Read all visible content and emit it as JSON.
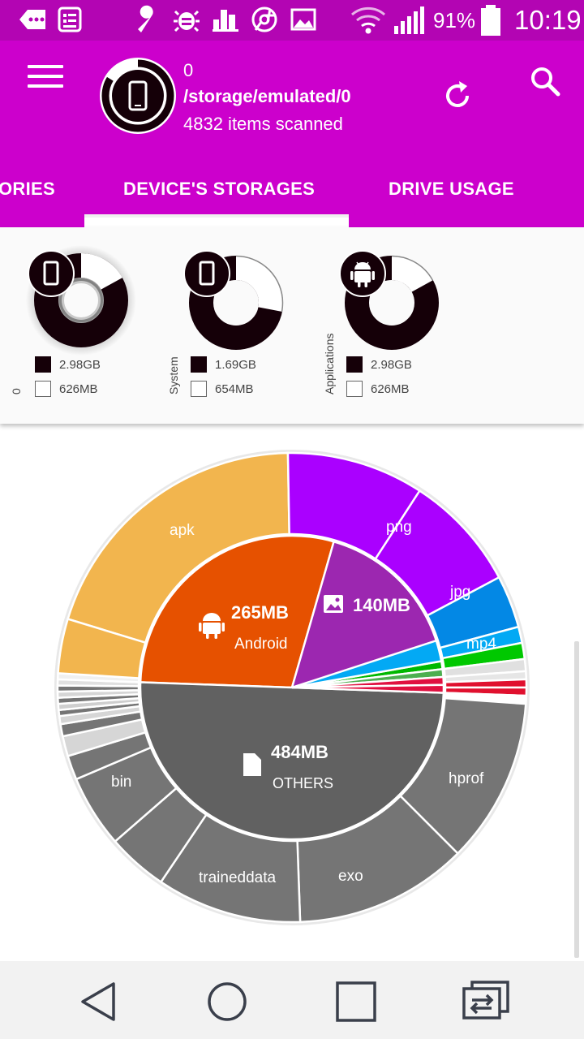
{
  "status_bar": {
    "battery": "91%",
    "time": "10:19",
    "icons": [
      "chat-icon",
      "news-icon",
      "wrench-icon",
      "bug-icon",
      "city-icon",
      "chrome-icon",
      "image-icon",
      "wifi-icon",
      "signal-icon",
      "battery-icon"
    ]
  },
  "header": {
    "line1": "0",
    "path": "/storage/emulated/0",
    "scanned": "4832 items scanned"
  },
  "tabs": [
    {
      "label": "ORIES"
    },
    {
      "label": "DEVICE'S STORAGES",
      "active": true
    },
    {
      "label": "DRIVE USAGE"
    }
  ],
  "storages": [
    {
      "name": "0",
      "icon": "phone-icon",
      "used": "2.98GB",
      "free": "626MB",
      "used_fraction": 0.83
    },
    {
      "name": "System",
      "icon": "phone-icon",
      "used": "1.69GB",
      "free": "654MB",
      "used_fraction": 0.72
    },
    {
      "name": "Applications",
      "icon": "android-icon",
      "used": "2.98GB",
      "free": "626MB",
      "used_fraction": 0.83
    }
  ],
  "colors": {
    "status_bar": "#b305b3",
    "app_bar": "#cc00cc",
    "dark_slice": "#150008",
    "android": "#e65100",
    "images": "#9c27b0",
    "others": "#616161",
    "apk": "#f2b54e",
    "png": "#aa00ff",
    "mp4": "#0388e5",
    "outer_grey": "#757575"
  },
  "chart_data": {
    "type": "sunburst",
    "inner": [
      {
        "size": "265MB",
        "name": "Android",
        "icon": "android-icon"
      },
      {
        "size": "140MB",
        "name": "",
        "icon": "image-icon"
      },
      {
        "size": "484MB",
        "name": "OTHERS",
        "icon": "file-icon"
      }
    ],
    "outer_labels": {
      "apk": "apk",
      "png": "png",
      "jpg": "jpg",
      "mp4": "mp4",
      "hprof": "hprof",
      "exo": "exo",
      "traineddata": "traineddata",
      "bin": "bin"
    }
  },
  "nav_bar": [
    "back-button",
    "home-button",
    "recents-button",
    "switch-app-button"
  ]
}
